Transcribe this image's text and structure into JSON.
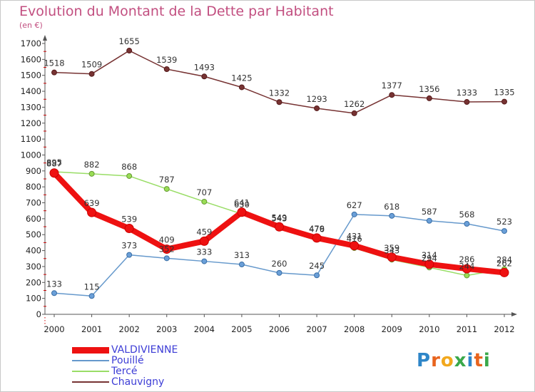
{
  "header": {
    "title": "Evolution du Montant de la Dette par Habitant",
    "unit": "(en €)"
  },
  "brand": {
    "name": "Proxiti",
    "letters": [
      "P",
      "r",
      "o",
      "x",
      "i",
      "t",
      "i"
    ],
    "colors": [
      "#2e86c8",
      "#e8641e",
      "#f2a81d",
      "#3aa84a",
      "#2e86c8",
      "#e8641e",
      "#3aa84a"
    ]
  },
  "chart_data": {
    "type": "line",
    "title": "Evolution du Montant de la Dette par Habitant",
    "ylabel": "(en €)",
    "x": [
      "2000",
      "2001",
      "2002",
      "2003",
      "2004",
      "2005",
      "2006",
      "2007",
      "2008",
      "2009",
      "2010",
      "2011",
      "2012"
    ],
    "ylim": [
      0,
      1700
    ],
    "yticks": [
      0,
      100,
      200,
      300,
      400,
      500,
      600,
      700,
      800,
      900,
      1000,
      1100,
      1200,
      1300,
      1400,
      1500,
      1600,
      1700
    ],
    "grid": false,
    "legend_position": "bottom-left",
    "series": [
      {
        "name": "VALDIVIENNE",
        "values": [
          887,
          639,
          539,
          409,
          459,
          641,
          549,
          479,
          431,
          359,
          314,
          286,
          262
        ],
        "color": "#ee1111",
        "marker_fill": "#ee1111",
        "marker_stroke": "#cc0000"
      },
      {
        "name": "Pouillé",
        "values": [
          133,
          115,
          373,
          352,
          333,
          313,
          260,
          245,
          627,
          618,
          587,
          568,
          523
        ],
        "color": "#6699cc",
        "marker_fill": "#6a9fd8",
        "marker_stroke": "#3a6ea5"
      },
      {
        "name": "Tercé",
        "values": [
          895,
          882,
          868,
          787,
          707,
          630,
          543,
          476,
          416,
          343,
          294,
          244,
          284
        ],
        "color": "#99dd66",
        "marker_fill": "#99dd55",
        "marker_stroke": "#669933"
      },
      {
        "name": "Chauvigny",
        "values": [
          1518,
          1509,
          1655,
          1539,
          1493,
          1425,
          1332,
          1293,
          1262,
          1377,
          1356,
          1333,
          1335
        ],
        "color": "#773333",
        "marker_fill": "#773333",
        "marker_stroke": "#551a1a"
      }
    ]
  }
}
